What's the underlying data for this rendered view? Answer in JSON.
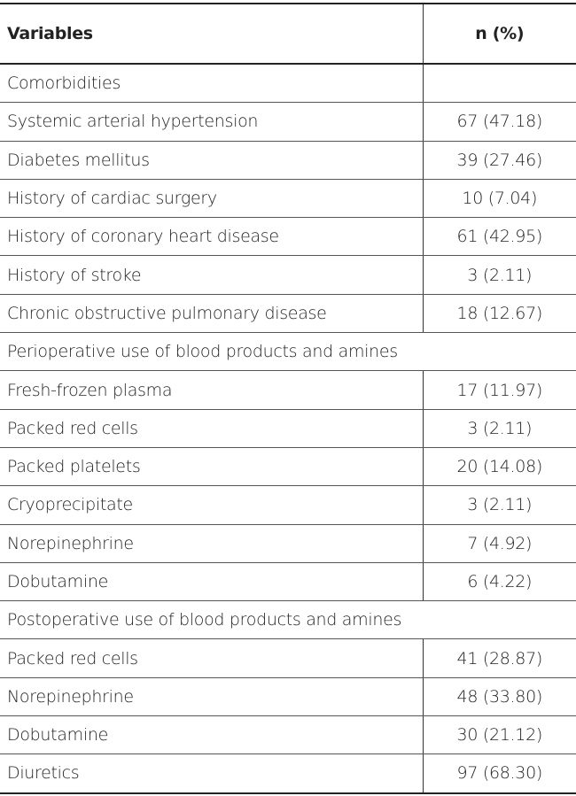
{
  "table": {
    "header": [
      "Variables",
      "n (%)"
    ],
    "rows": [
      [
        "Comorbidities"
      ],
      [
        "Systemic arterial hypertension",
        "67 (47.18)"
      ],
      [
        "Diabetes mellitus",
        "39 (27.46)"
      ],
      [
        "History of cardiac surgery",
        "10 (7.04)"
      ],
      [
        "History of coronary heart disease",
        "61 (42.95)"
      ],
      [
        "History of stroke",
        "3 (2.11)"
      ],
      [
        "Chronic obstructive pulmonary disease",
        "18 (12.67)"
      ],
      [
        "Perioperative use of blood products and amines"
      ],
      [
        "Fresh-frozen plasma",
        "17 (11.97)"
      ],
      [
        "Packed red cells",
        "3 (2.11)"
      ],
      [
        "Packed platelets",
        "20 (14.08)"
      ],
      [
        "Cryoprecipitate",
        "3 (2.11)"
      ],
      [
        "Norepinephrine",
        "7 (4.92)"
      ],
      [
        "Dobutamine",
        "6 (4.22)"
      ],
      [
        "Postoperative use of blood products and amines"
      ],
      [
        "Packed red cells",
        "41 (28.87)"
      ],
      [
        "Norepinephrine",
        "48 (33.80)"
      ],
      [
        "Dobutamine",
        "30 (21.12)"
      ],
      [
        "Diuretics",
        "97 (68.30)"
      ]
    ]
  }
}
